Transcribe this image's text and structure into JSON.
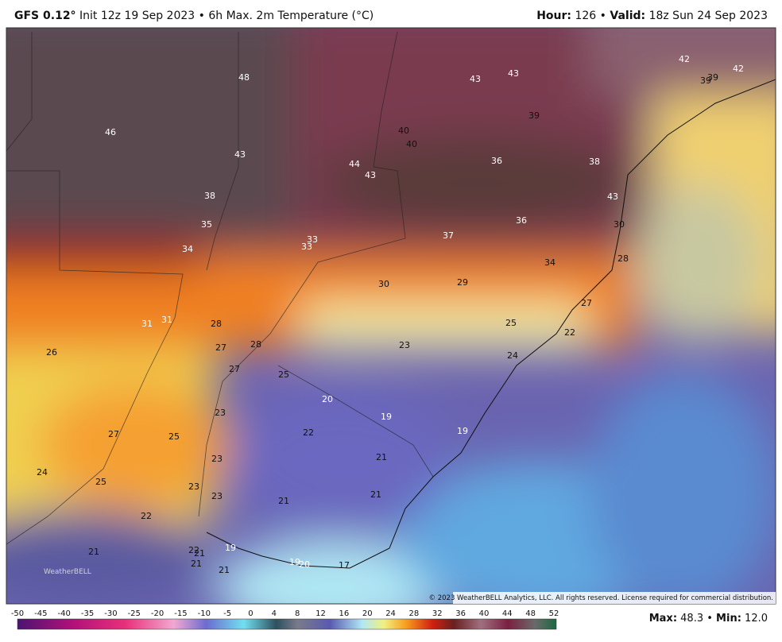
{
  "header": {
    "model": "GFS 0.12°",
    "description": "Init 12z 19 Sep 2023 • 6h Max. 2m Temperature (°C)",
    "hour_label": "Hour:",
    "hour_value": "126 •",
    "valid_label": "Valid:",
    "valid_value": "18z Sun 24 Sep 2023"
  },
  "map": {
    "labels": [
      "48",
      "46",
      "43",
      "38",
      "35",
      "34",
      "33",
      "33",
      "44",
      "43",
      "40",
      "40",
      "43",
      "43",
      "39",
      "36",
      "38",
      "43",
      "36",
      "37",
      "34",
      "30",
      "28",
      "42",
      "39",
      "39",
      "42",
      "30",
      "29",
      "27",
      "25",
      "22",
      "23",
      "24",
      "31",
      "31",
      "28",
      "27",
      "28",
      "26",
      "27",
      "25",
      "20",
      "19",
      "19",
      "22",
      "23",
      "27",
      "25",
      "23",
      "21",
      "24",
      "25",
      "23",
      "23",
      "21",
      "21",
      "22",
      "21",
      "19",
      "22",
      "21",
      "21",
      "21",
      "19",
      "20",
      "17"
    ],
    "copyright": "© 2023 WeatherBELL Analytics, LLC. All rights reserved. License required for commercial distribution.",
    "logo": "WeatherBELL"
  },
  "colorbar": {
    "ticks": [
      -50,
      -45,
      -40,
      -35,
      -30,
      -25,
      -20,
      -15,
      -10,
      -5,
      0,
      4,
      8,
      12,
      16,
      20,
      24,
      28,
      32,
      36,
      40,
      44,
      48,
      52
    ]
  },
  "footer": {
    "max_label": "Max:",
    "max_value": "48.3 •",
    "min_label": "Min:",
    "min_value": "12.0"
  }
}
